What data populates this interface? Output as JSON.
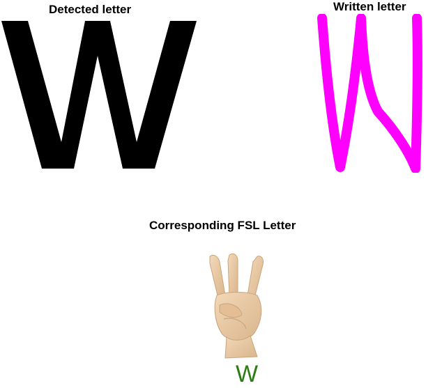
{
  "detected": {
    "title": "Detected letter",
    "letter": "W",
    "color": "#000000"
  },
  "written": {
    "title": "Written letter",
    "color": "#ff00ff"
  },
  "fsl": {
    "title": "Corresponding FSL Letter",
    "caption_letter": "W",
    "caption_color": "#2e7d12",
    "skin_color": "#e8c7a0"
  }
}
